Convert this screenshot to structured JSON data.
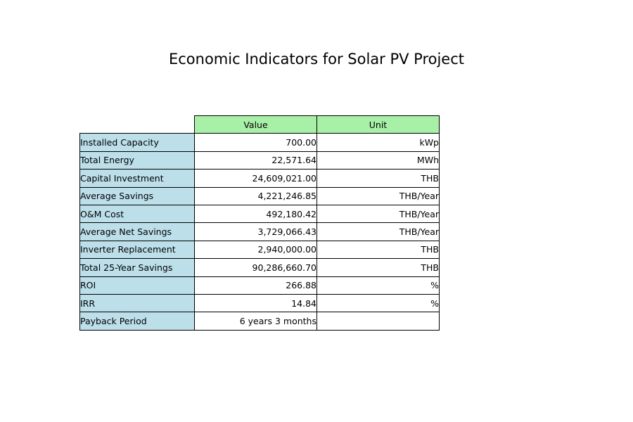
{
  "colors": {
    "header_bg": "#a8f0a8",
    "row_label_bg": "#bcdfea",
    "cell_bg": "#ffffff",
    "border": "#000000"
  },
  "chart_data": {
    "type": "table",
    "title": "Economic Indicators for Solar PV Project",
    "columns": [
      "Value",
      "Unit"
    ],
    "rows": [
      {
        "label": "Installed Capacity",
        "value": "700.00",
        "unit": "kWp"
      },
      {
        "label": "Total Energy",
        "value": "22,571.64",
        "unit": "MWh"
      },
      {
        "label": "Capital Investment",
        "value": "24,609,021.00",
        "unit": "THB"
      },
      {
        "label": "Average Savings",
        "value": "4,221,246.85",
        "unit": "THB/Year"
      },
      {
        "label": "O&M Cost",
        "value": "492,180.42",
        "unit": "THB/Year"
      },
      {
        "label": "Average Net Savings",
        "value": "3,729,066.43",
        "unit": "THB/Year"
      },
      {
        "label": "Inverter Replacement",
        "value": "2,940,000.00",
        "unit": "THB"
      },
      {
        "label": "Total 25-Year Savings",
        "value": "90,286,660.70",
        "unit": "THB"
      },
      {
        "label": "ROI",
        "value": "266.88",
        "unit": "%"
      },
      {
        "label": "IRR",
        "value": "14.84",
        "unit": "%"
      },
      {
        "label": "Payback Period",
        "value": "6 years 3 months",
        "unit": ""
      }
    ]
  }
}
